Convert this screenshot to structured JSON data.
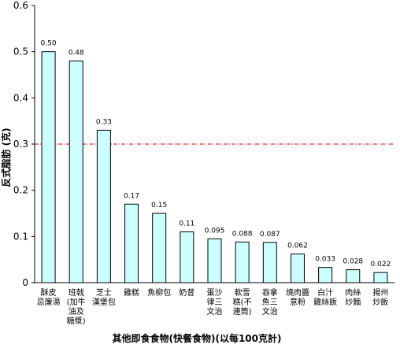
{
  "chart_data": {
    "type": "bar",
    "categories": [
      [
        "酥皮",
        "忌廉湯"
      ],
      [
        "班戟",
        "(加牛",
        "油及",
        "糖漿)"
      ],
      [
        "芝士",
        "漢堡包"
      ],
      [
        "雞糕"
      ],
      [
        "魚柳包"
      ],
      [
        "奶昔"
      ],
      [
        "蛋沙",
        "律三",
        "文治"
      ],
      [
        "軟雪",
        "糕(不",
        "連筒)"
      ],
      [
        "吞拿",
        "魚三",
        "文治"
      ],
      [
        "燒肉醬",
        "意粉"
      ],
      [
        "白汁",
        "雞絲飯"
      ],
      [
        "肉絲",
        "炒麵"
      ],
      [
        "揚州",
        "炒飯"
      ]
    ],
    "values": [
      0.5,
      0.48,
      0.33,
      0.17,
      0.15,
      0.11,
      0.095,
      0.088,
      0.087,
      0.062,
      0.033,
      0.028,
      0.022
    ],
    "value_labels": [
      "0.50",
      "0.48",
      "0.33",
      "0.17",
      "0.15",
      "0.11",
      "0.095",
      "0.088",
      "0.087",
      "0.062",
      "0.033",
      "0.028",
      "0.022"
    ],
    "xlabel": "其他即食食物(快餐食物)(以每100克計)",
    "ylabel": "反式脂肪 (克)",
    "ylim": [
      0,
      0.6
    ],
    "yticks": [
      "0",
      "0.1",
      "0.2",
      "0.3",
      "0.4",
      "0.5",
      "0.6"
    ],
    "reference_line": 0.3,
    "bar_fill": "#ccffff",
    "bar_stroke": "#000000",
    "reference_line_color": "#cc0000",
    "grid": false,
    "legend": "none"
  }
}
